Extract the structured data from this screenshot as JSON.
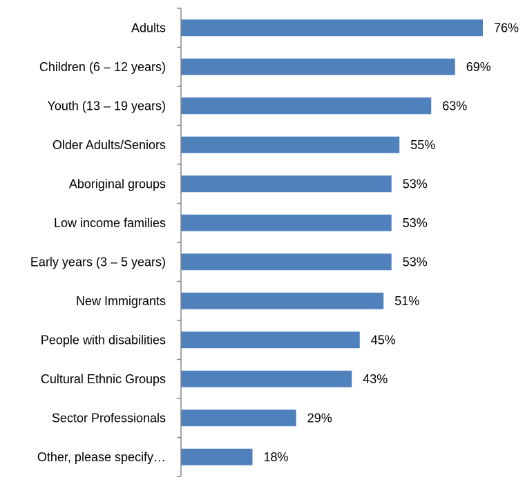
{
  "chart_data": {
    "type": "bar",
    "orientation": "horizontal",
    "title": "",
    "xlabel": "",
    "ylabel": "",
    "categories": [
      "Adults",
      "Children (6 – 12 years)",
      "Youth (13 – 19 years)",
      "Older Adults/Seniors",
      "Aboriginal groups",
      "Low income families",
      "Early years (3 – 5 years)",
      "New Immigrants",
      "People with disabilities",
      "Cultural Ethnic Groups",
      "Sector Professionals",
      "Other, please specify…"
    ],
    "values": [
      76,
      69,
      63,
      55,
      53,
      53,
      53,
      51,
      45,
      43,
      29,
      18
    ],
    "value_labels": [
      "76%",
      "69%",
      "63%",
      "55%",
      "53%",
      "53%",
      "53%",
      "51%",
      "45%",
      "43%",
      "29%",
      "18%"
    ],
    "xlim": [
      0,
      80
    ],
    "unit": "%",
    "grid": false,
    "legend": "none",
    "bar_color": "#4F81BD",
    "axis_color": "#868686"
  }
}
